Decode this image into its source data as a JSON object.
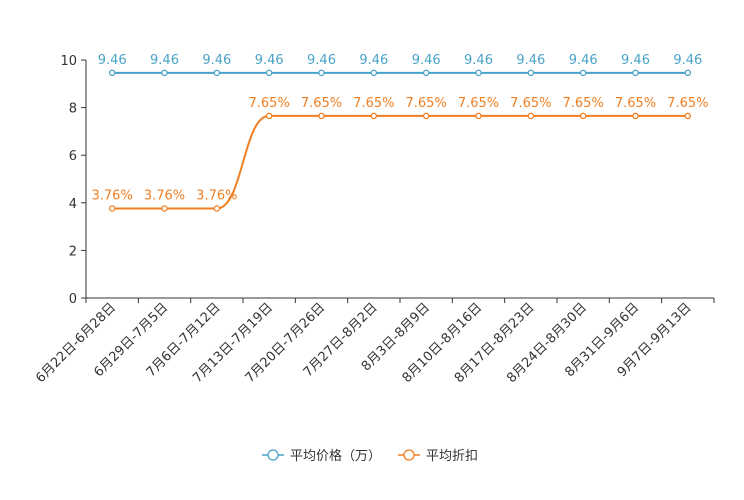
{
  "chart_data": {
    "type": "line",
    "categories": [
      "6月22日-6月28日",
      "6月29日-7月5日",
      "7月6日-7月12日",
      "7月13日-7月19日",
      "7月20日-7月26日",
      "7月27日-8月2日",
      "8月3日-8月9日",
      "8月10日-8月16日",
      "8月17日-8月23日",
      "8月24日-8月30日",
      "8月31日-9月6日",
      "9月7日-9月13日"
    ],
    "ylim": [
      0,
      10
    ],
    "yticks": [
      0,
      2,
      4,
      6,
      8,
      10
    ],
    "series": [
      {
        "name": "平均价格（万）",
        "color": "#4aa3c8",
        "values": [
          9.46,
          9.46,
          9.46,
          9.46,
          9.46,
          9.46,
          9.46,
          9.46,
          9.46,
          9.46,
          9.46,
          9.46
        ],
        "labels": [
          "9.46",
          "9.46",
          "9.46",
          "9.46",
          "9.46",
          "9.46",
          "9.46",
          "9.46",
          "9.46",
          "9.46",
          "9.46",
          "9.46"
        ]
      },
      {
        "name": "平均折扣",
        "color": "#f07f22",
        "values": [
          3.76,
          3.76,
          3.76,
          7.65,
          7.65,
          7.65,
          7.65,
          7.65,
          7.65,
          7.65,
          7.65,
          7.65
        ],
        "labels": [
          "3.76%",
          "3.76%",
          "3.76%",
          "7.65%",
          "7.65%",
          "7.65%",
          "7.65%",
          "7.65%",
          "7.65%",
          "7.65%",
          "7.65%",
          "7.65%"
        ]
      }
    ],
    "legend_position": "bottom-center"
  }
}
